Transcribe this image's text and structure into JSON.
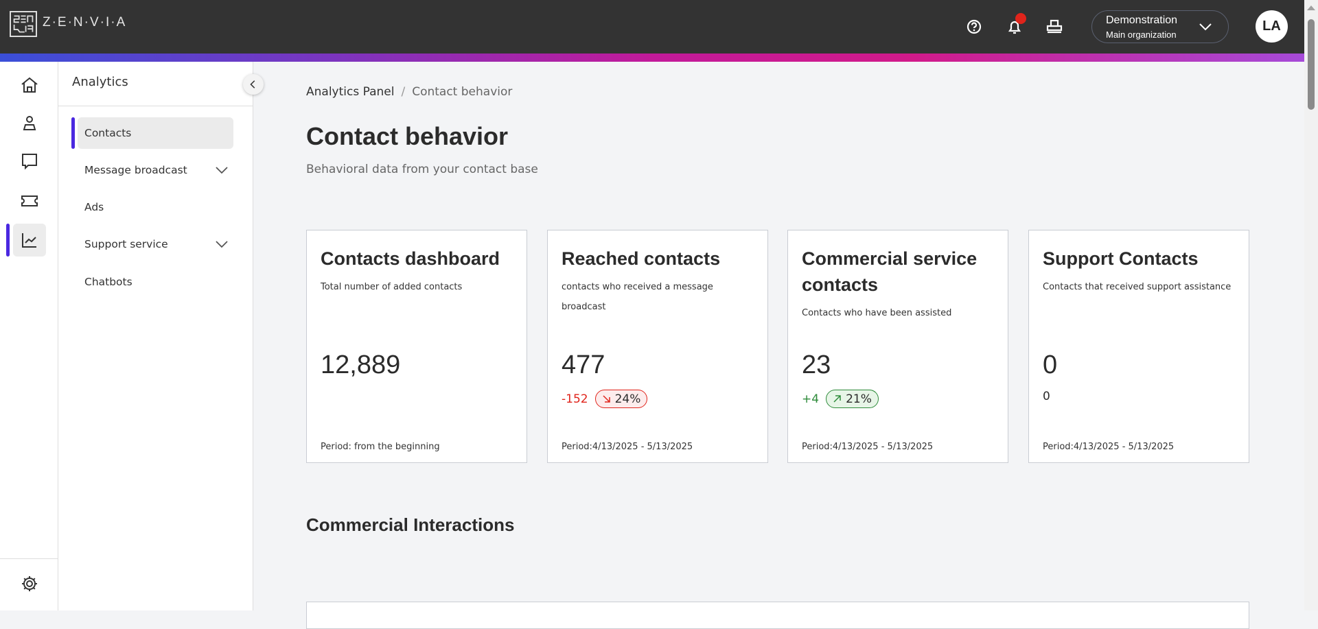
{
  "header": {
    "brand": "Z·E·N·V·I·A",
    "org_name": "Demonstration",
    "org_sub": "Main organization",
    "avatar": "LA",
    "icons": [
      "help-icon",
      "bell-icon",
      "printer-icon"
    ]
  },
  "colors": {
    "accent": "#4a28e0",
    "topbar": "#333333",
    "negative": "#e0241b",
    "positive": "#2e8b3a"
  },
  "rail": {
    "icons": [
      "home-icon",
      "contacts-icon",
      "chat-icon",
      "ticket-icon",
      "analytics-icon",
      "settings-icon"
    ],
    "active": "analytics-icon"
  },
  "sidebar": {
    "title": "Analytics",
    "items": [
      {
        "label": "Contacts",
        "active": true
      },
      {
        "label": "Message broadcast",
        "expandable": true
      },
      {
        "label": "Ads"
      },
      {
        "label": "Support service",
        "expandable": true
      },
      {
        "label": "Chatbots"
      }
    ]
  },
  "breadcrumb": {
    "root": "Analytics Panel",
    "sep": "/",
    "current": "Contact behavior"
  },
  "page": {
    "title": "Contact behavior",
    "subtitle": "Behavioral data from your contact base"
  },
  "cards": [
    {
      "title": "Contacts dashboard",
      "subtitle": "Total number of added contacts",
      "value": "12,889",
      "period": "Period: from the beginning"
    },
    {
      "title": "Reached contacts",
      "subtitle": "contacts who received a message broadcast",
      "value": "477",
      "delta": "-152",
      "pct": "24%",
      "trend": "down",
      "period": "Period:4/13/2025 - 5/13/2025"
    },
    {
      "title": "Commercial service contacts",
      "subtitle": "Contacts who have been assisted",
      "value": "23",
      "delta": "+4",
      "pct": "21%",
      "trend": "up",
      "period": "Period:4/13/2025 - 5/13/2025"
    },
    {
      "title": "Support Contacts",
      "subtitle": "Contacts that received support assistance",
      "value": "0",
      "delta": "0",
      "period": "Period:4/13/2025 - 5/13/2025"
    }
  ],
  "section": {
    "title": "Commercial Interactions"
  }
}
